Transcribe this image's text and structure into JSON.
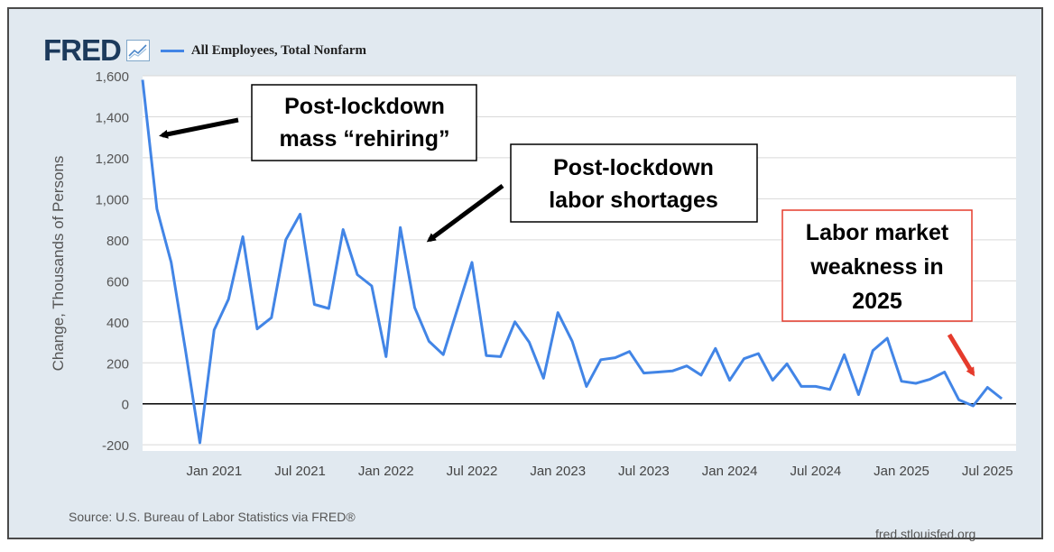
{
  "header": {
    "logo": "FRED",
    "logo_icon": "line-chart-icon",
    "legend_label": "All Employees, Total Nonfarm"
  },
  "footer": {
    "source": "Source: U.S. Bureau of Labor Statistics via FRED®",
    "site": "fred.stlouisfed.org"
  },
  "colors": {
    "series": "#4285e6",
    "background": "#e1e9f0",
    "plot": "#ffffff",
    "zero_line": "#000000",
    "annotation_red": "#e53b2c"
  },
  "chart_data": {
    "type": "line",
    "title": "",
    "xlabel": "",
    "ylabel": "Change, Thousands of Persons",
    "ylim": [
      -230,
      1600
    ],
    "yticks": [
      -200,
      0,
      200,
      400,
      600,
      800,
      1000,
      1200,
      1400,
      1600
    ],
    "ytick_labels": [
      "-200",
      "0",
      "200",
      "400",
      "600",
      "800",
      "1,000",
      "1,200",
      "1,400",
      "1,600"
    ],
    "xlim": [
      "2020-08",
      "2025-09"
    ],
    "xticks": [
      {
        "date": "2021-01",
        "label": "Jan 2021"
      },
      {
        "date": "2021-07",
        "label": "Jul 2021"
      },
      {
        "date": "2022-01",
        "label": "Jan 2022"
      },
      {
        "date": "2022-07",
        "label": "Jul 2022"
      },
      {
        "date": "2023-01",
        "label": "Jan 2023"
      },
      {
        "date": "2023-07",
        "label": "Jul 2023"
      },
      {
        "date": "2024-01",
        "label": "Jan 2024"
      },
      {
        "date": "2024-07",
        "label": "Jul 2024"
      },
      {
        "date": "2025-01",
        "label": "Jan 2025"
      },
      {
        "date": "2025-07",
        "label": "Jul 2025"
      }
    ],
    "grid": true,
    "legend": "top-left",
    "series": [
      {
        "name": "All Employees, Total Nonfarm",
        "x": [
          "2020-08",
          "2020-09",
          "2020-10",
          "2020-11",
          "2020-12",
          "2021-01",
          "2021-02",
          "2021-03",
          "2021-04",
          "2021-05",
          "2021-06",
          "2021-07",
          "2021-08",
          "2021-09",
          "2021-10",
          "2021-11",
          "2021-12",
          "2022-01",
          "2022-02",
          "2022-03",
          "2022-04",
          "2022-05",
          "2022-06",
          "2022-07",
          "2022-08",
          "2022-09",
          "2022-10",
          "2022-11",
          "2022-12",
          "2023-01",
          "2023-02",
          "2023-03",
          "2023-04",
          "2023-05",
          "2023-06",
          "2023-07",
          "2023-08",
          "2023-09",
          "2023-10",
          "2023-11",
          "2023-12",
          "2024-01",
          "2024-02",
          "2024-03",
          "2024-04",
          "2024-05",
          "2024-06",
          "2024-07",
          "2024-08",
          "2024-09",
          "2024-10",
          "2024-11",
          "2024-12",
          "2025-01",
          "2025-02",
          "2025-03",
          "2025-04",
          "2025-05",
          "2025-06",
          "2025-07",
          "2025-08"
        ],
        "values": [
          1580,
          950,
          690,
          260,
          -190,
          360,
          510,
          815,
          365,
          420,
          800,
          925,
          485,
          465,
          850,
          630,
          575,
          230,
          860,
          470,
          305,
          240,
          465,
          690,
          235,
          230,
          400,
          300,
          125,
          445,
          305,
          85,
          215,
          225,
          255,
          150,
          155,
          160,
          185,
          140,
          270,
          115,
          220,
          245,
          115,
          195,
          85,
          85,
          70,
          240,
          45,
          260,
          320,
          110,
          100,
          120,
          155,
          20,
          -10,
          80,
          25
        ]
      }
    ],
    "annotations": [
      {
        "text": "Post-lockdown mass “rehiring”",
        "lines": [
          "Post-lockdown",
          "mass “rehiring”"
        ],
        "box_border": "black",
        "arrow_color": "black",
        "points_to": {
          "date": "2020-09",
          "value": 1330
        }
      },
      {
        "text": "Post-lockdown labor shortages",
        "lines": [
          "Post-lockdown",
          "labor shortages"
        ],
        "box_border": "black",
        "arrow_color": "black",
        "points_to": {
          "date": "2022-03",
          "value": 800
        }
      },
      {
        "text": "Labor market weakness in 2025",
        "lines": [
          "Labor market",
          "weakness in",
          "2025"
        ],
        "box_border": "red",
        "arrow_color": "red",
        "points_to": {
          "date": "2025-05",
          "value": 115
        }
      }
    ]
  }
}
